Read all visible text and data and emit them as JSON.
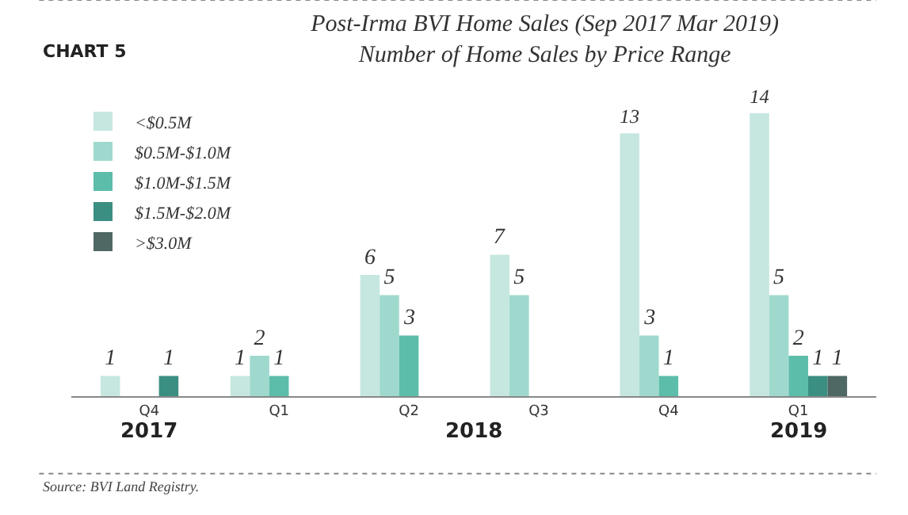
{
  "chart_data": {
    "type": "bar",
    "title": "Post-Irma BVI Home Sales (Sep 2017 Mar 2019)\nNumber of Home Sales by Price Range",
    "categories": [
      "Q4",
      "Q1",
      "Q2",
      "Q3",
      "Q4",
      "Q1"
    ],
    "series": [
      {
        "name": "<$0.5M",
        "color": "#c6e7e0",
        "values": [
          1,
          1,
          6,
          7,
          13,
          14
        ]
      },
      {
        "name": "$0.5M-$1.0M",
        "color": "#9fd9ce",
        "values": [
          null,
          2,
          5,
          5,
          3,
          5
        ]
      },
      {
        "name": "$1.0M-$1.5M",
        "color": "#5cbdab",
        "values": [
          null,
          1,
          3,
          null,
          1,
          2
        ]
      },
      {
        "name": "$1.5M-$2.0M",
        "color": "#3a8f82",
        "values": [
          1,
          null,
          null,
          null,
          null,
          1
        ]
      },
      {
        "name": ">$3.0M",
        "color": "#4f6864",
        "values": [
          null,
          null,
          null,
          null,
          null,
          1
        ]
      }
    ],
    "data_labels": true,
    "legend": "top left",
    "annotations": [
      "CHART 5",
      "2017",
      "2018",
      "2019",
      "Source: BVI Land Registry."
    ]
  }
}
